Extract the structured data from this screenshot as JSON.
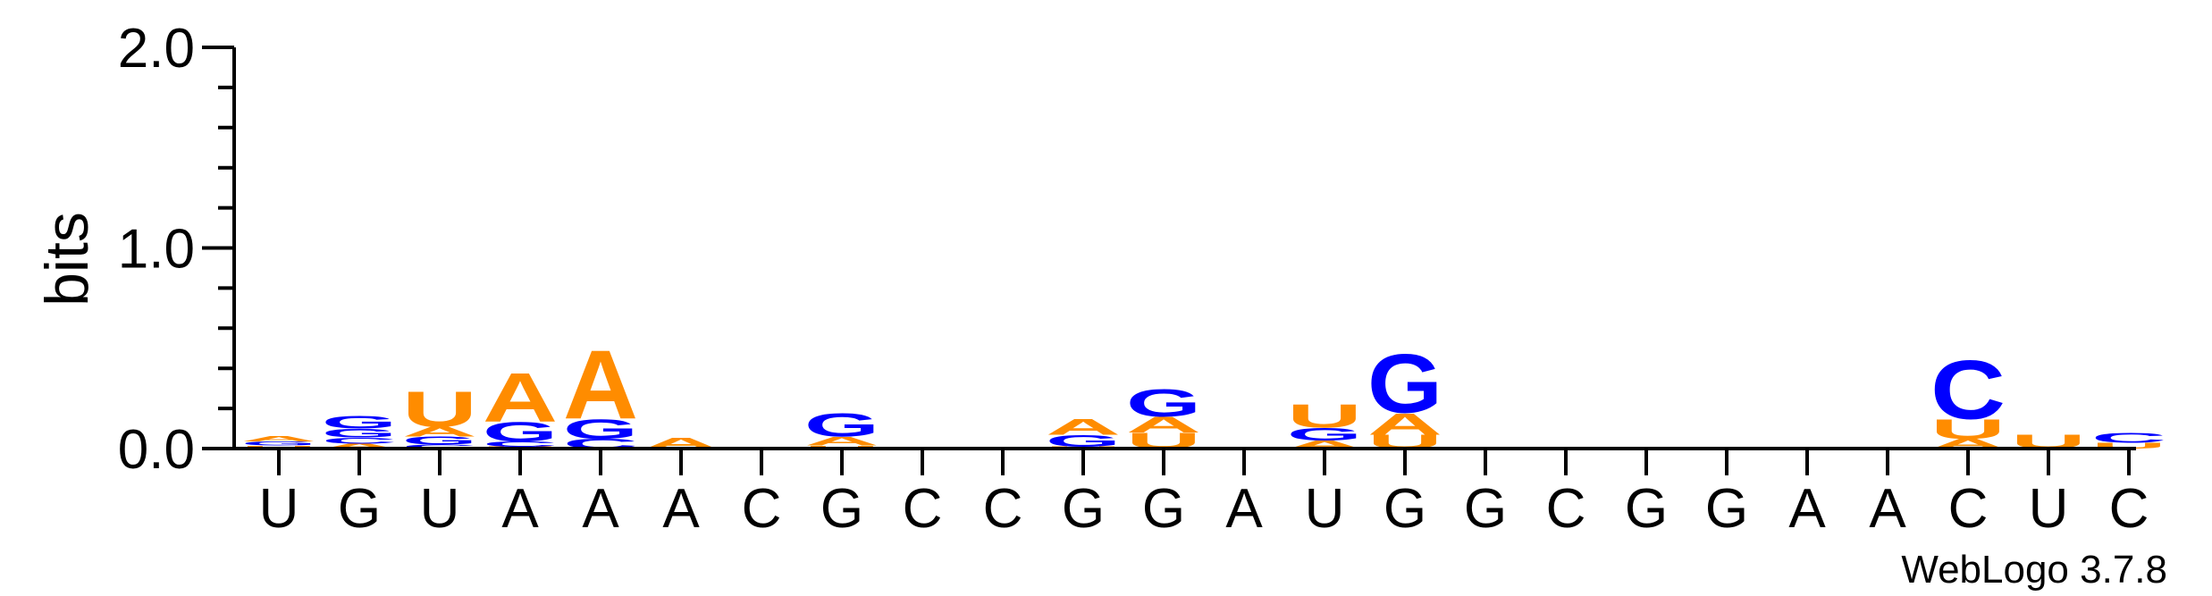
{
  "chart_data": {
    "type": "sequence-logo",
    "ylabel": "bits",
    "ylim": [
      0,
      2.0
    ],
    "y_ticks": [
      "0.0",
      "1.0",
      "2.0"
    ],
    "x_labels": [
      "U",
      "G",
      "U",
      "A",
      "A",
      "A",
      "C",
      "G",
      "C",
      "C",
      "G",
      "G",
      "A",
      "U",
      "G",
      "G",
      "C",
      "G",
      "G",
      "A",
      "A",
      "C",
      "U",
      "C"
    ],
    "colors": {
      "A": "#ff8c00",
      "U": "#ff8c00",
      "G": "#0000ff",
      "C": "#0000ff"
    },
    "stacks": [
      [
        {
          "l": "U",
          "h": 0.015
        },
        {
          "l": "G",
          "h": 0.02
        },
        {
          "l": "A",
          "h": 0.025
        }
      ],
      [
        {
          "l": "A",
          "h": 0.025
        },
        {
          "l": "C",
          "h": 0.03
        },
        {
          "l": "G",
          "h": 0.045
        },
        {
          "l": "G",
          "h": 0.065
        }
      ],
      [
        {
          "l": "C",
          "h": 0.02
        },
        {
          "l": "G",
          "h": 0.04
        },
        {
          "l": "A",
          "h": 0.05
        },
        {
          "l": "U",
          "h": 0.18
        }
      ],
      [
        {
          "l": "U",
          "h": 0.01
        },
        {
          "l": "C",
          "h": 0.025
        },
        {
          "l": "G",
          "h": 0.1
        },
        {
          "l": "A",
          "h": 0.25
        }
      ],
      [
        {
          "l": "C",
          "h": 0.05
        },
        {
          "l": "G",
          "h": 0.1
        },
        {
          "l": "A",
          "h": 0.35
        }
      ],
      [
        {
          "l": "A",
          "h": 0.055
        }
      ],
      [],
      [
        {
          "l": "U",
          "h": 0.015
        },
        {
          "l": "A",
          "h": 0.045
        },
        {
          "l": "G",
          "h": 0.12
        }
      ],
      [],
      [],
      [
        {
          "l": "U",
          "h": 0.01
        },
        {
          "l": "G",
          "h": 0.06
        },
        {
          "l": "A",
          "h": 0.08
        }
      ],
      [
        {
          "l": "U",
          "h": 0.08
        },
        {
          "l": "A",
          "h": 0.08
        },
        {
          "l": "G",
          "h": 0.14
        }
      ],
      [],
      [
        {
          "l": "A",
          "h": 0.04
        },
        {
          "l": "G",
          "h": 0.065
        },
        {
          "l": "U",
          "h": 0.12
        }
      ],
      [
        {
          "l": "U",
          "h": 0.07
        },
        {
          "l": "A",
          "h": 0.11
        },
        {
          "l": "G",
          "h": 0.3
        }
      ],
      [],
      [],
      [],
      [],
      [],
      [],
      [
        {
          "l": "A",
          "h": 0.05
        },
        {
          "l": "U",
          "h": 0.1
        },
        {
          "l": "C",
          "h": 0.3
        }
      ],
      [
        {
          "l": "U",
          "h": 0.07
        }
      ],
      [
        {
          "l": "U",
          "h": 0.03
        },
        {
          "l": "C",
          "h": 0.05
        }
      ]
    ]
  },
  "credit": "WebLogo 3.7.8"
}
